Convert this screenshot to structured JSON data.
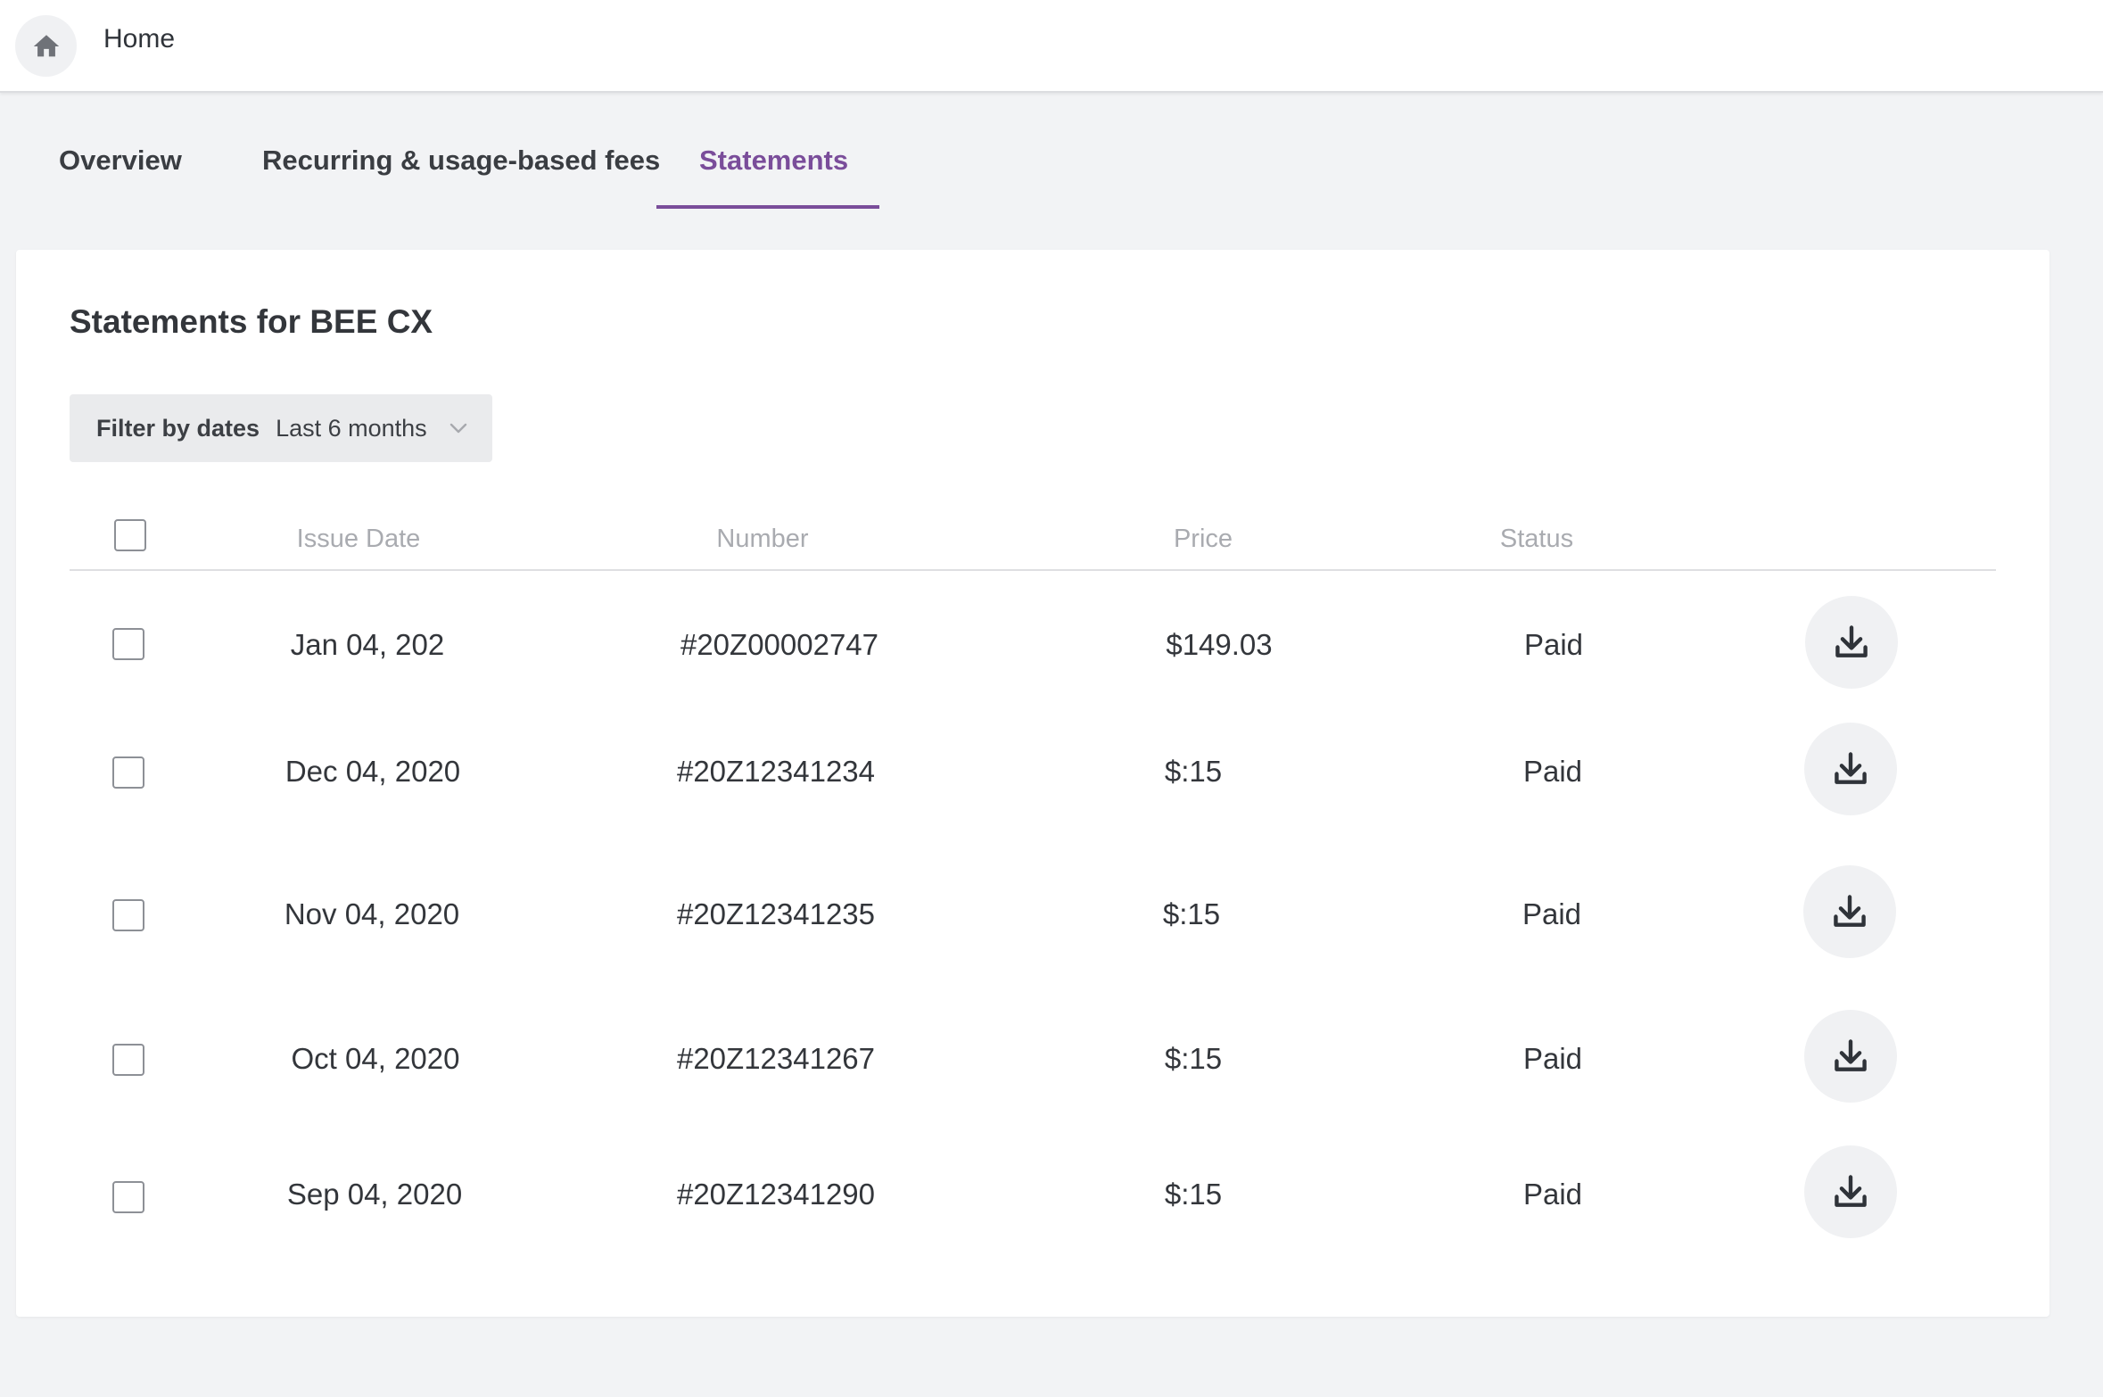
{
  "header": {
    "breadcrumb": "Home",
    "home_icon": "home-icon"
  },
  "tabs": [
    {
      "label": "Overview",
      "active": false
    },
    {
      "label": "Recurring & usage-based fees",
      "active": false
    },
    {
      "label": "Statements",
      "active": true
    }
  ],
  "colors": {
    "accent": "#7a4d9a",
    "background": "#f2f3f5",
    "card": "#ffffff"
  },
  "statements": {
    "title": "Statements for BEE CX",
    "filter": {
      "label": "Filter by dates",
      "value": "Last 6 months"
    },
    "columns": [
      "Issue Date",
      "Number",
      "Price",
      "Status"
    ],
    "rows": [
      {
        "issue_date": "Jan 04, 202",
        "number": "#20Z00002747",
        "price": "$149.03",
        "status": "Paid"
      },
      {
        "issue_date": "Dec 04, 2020",
        "number": "#20Z12341234",
        "price": "$:15",
        "status": "Paid"
      },
      {
        "issue_date": "Nov 04, 2020",
        "number": "#20Z12341235",
        "price": "$:15",
        "status": "Paid"
      },
      {
        "issue_date": "Oct 04, 2020",
        "number": "#20Z12341267",
        "price": "$:15",
        "status": "Paid"
      },
      {
        "issue_date": "Sep 04, 2020",
        "number": "#20Z12341290",
        "price": "$:15",
        "status": "Paid"
      }
    ]
  }
}
